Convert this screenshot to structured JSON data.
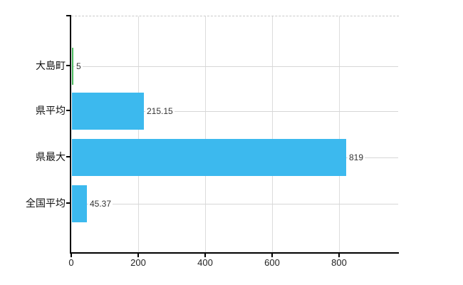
{
  "chart_data": {
    "type": "bar",
    "orientation": "horizontal",
    "title": "",
    "xlabel": "",
    "ylabel": "",
    "categories": [
      "大島町",
      "県平均",
      "県最大",
      "全国平均"
    ],
    "series": [
      {
        "name": "値",
        "values": [
          5,
          215.15,
          819,
          45.37
        ]
      }
    ],
    "value_labels": [
      "5",
      "215.15",
      "819",
      "45.37"
    ],
    "bar_colors": [
      "#4cb860",
      "#3cb9ee",
      "#3cb9ee",
      "#3cb9ee"
    ],
    "highlight_color": "#4cb860",
    "default_bar_color": "#3cb9ee",
    "x_ticks": [
      {
        "value": 0,
        "label": "0"
      },
      {
        "value": 200,
        "label": "200"
      },
      {
        "value": 400,
        "label": "400"
      },
      {
        "value": 600,
        "label": "600"
      },
      {
        "value": 800,
        "label": "800"
      }
    ],
    "xlim": [
      0,
      978
    ],
    "grid": true,
    "legend": "none",
    "colors": {
      "axis": "#000000",
      "vertical_gridline": "#dcdcdc",
      "row_gridline": "#d6d6d6",
      "plot_top_border": "#c9c9c9",
      "text": "#111111"
    }
  }
}
